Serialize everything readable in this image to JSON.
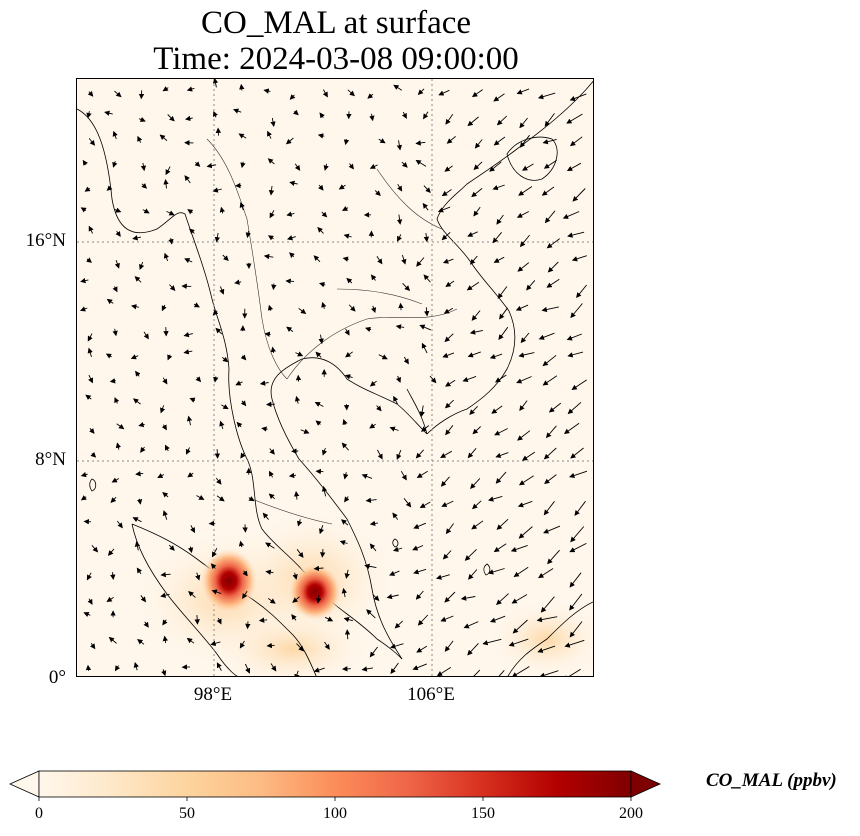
{
  "title": {
    "line1": "CO_MAL at surface",
    "line2": "Time: 2024-03-08 09:00:00"
  },
  "map": {
    "lon_range": [
      93,
      112
    ],
    "lat_range": [
      0,
      22
    ],
    "lat_ticks": [
      "16°N",
      "8°N",
      "0°"
    ],
    "lon_ticks": [
      "98°E",
      "106°E"
    ],
    "gridlines": "dotted",
    "background_color": "#fff7ec",
    "hotspots": [
      {
        "lon": 98.5,
        "lat": 3.6,
        "value": 200
      },
      {
        "lon": 102.0,
        "lat": 3.2,
        "value": 200
      }
    ],
    "wind_field": "northeasterly over South China Sea, weak and variable over land"
  },
  "colorbar": {
    "label": "CO_MAL (ppbv)",
    "ticks": [
      "0",
      "50",
      "100",
      "150",
      "200"
    ],
    "range": [
      0,
      200
    ],
    "colormap": "OrRd",
    "colors": [
      "#fff7ec",
      "#fee8c8",
      "#fdd49e",
      "#fdbb84",
      "#fc8d59",
      "#ef6548",
      "#d7301f",
      "#b30000",
      "#7f0000"
    ],
    "extend": "both"
  }
}
